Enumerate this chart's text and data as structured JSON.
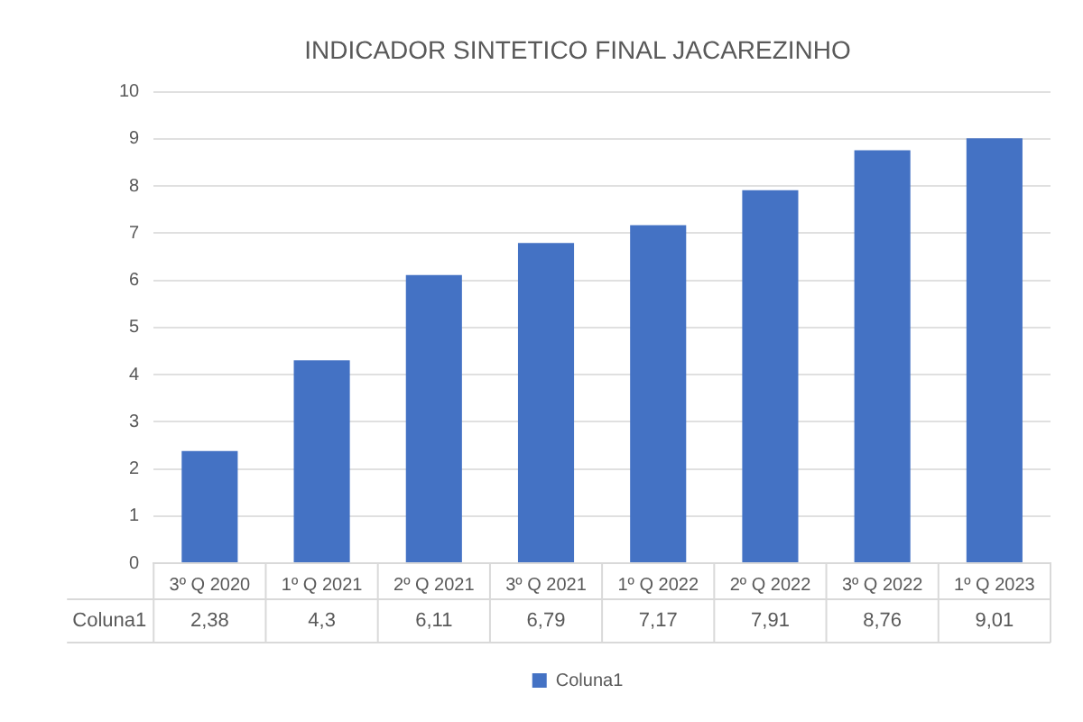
{
  "chart_data": {
    "type": "bar",
    "title": "INDICADOR SINTETICO FINAL JACAREZINHO",
    "categories": [
      "3º Q 2020",
      "1º Q 2021",
      "2º Q 2021",
      "3º Q 2021",
      "1º Q 2022",
      "2º Q 2022",
      "3º Q 2022",
      "1º Q 2023"
    ],
    "series": [
      {
        "name": "Coluna1",
        "color": "#4472c4",
        "values": [
          2.38,
          4.3,
          6.11,
          6.79,
          7.17,
          7.91,
          8.76,
          9.01
        ],
        "value_labels": [
          "2,38",
          "4,3",
          "6,11",
          "6,79",
          "7,17",
          "7,91",
          "8,76",
          "9,01"
        ]
      }
    ],
    "ylim": [
      0,
      10
    ],
    "yticks": [
      0,
      1,
      2,
      3,
      4,
      5,
      6,
      7,
      8,
      9,
      10
    ],
    "grid": "y",
    "legend": "bottom"
  }
}
